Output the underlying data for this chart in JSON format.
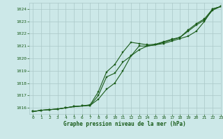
{
  "title": "Graphe pression niveau de la mer (hPa)",
  "bg_color": "#cce8e8",
  "grid_color": "#aac8c8",
  "line_color": "#1a5c1a",
  "xlim": [
    -0.5,
    23
  ],
  "ylim": [
    1015.5,
    1024.5
  ],
  "yticks": [
    1016,
    1017,
    1018,
    1019,
    1020,
    1021,
    1022,
    1023,
    1024
  ],
  "xticks": [
    0,
    1,
    2,
    3,
    4,
    5,
    6,
    7,
    8,
    9,
    10,
    11,
    12,
    13,
    14,
    15,
    16,
    17,
    18,
    19,
    20,
    21,
    22,
    23
  ],
  "series1": [
    1015.7,
    1015.8,
    1015.85,
    1015.9,
    1016.0,
    1016.1,
    1016.15,
    1016.2,
    1017.0,
    1018.5,
    1018.8,
    1019.7,
    1020.2,
    1020.7,
    1021.0,
    1021.1,
    1021.3,
    1021.5,
    1021.7,
    1022.2,
    1022.7,
    1023.1,
    1023.9,
    1024.2
  ],
  "series2": [
    1015.7,
    1015.8,
    1015.85,
    1015.9,
    1016.0,
    1016.1,
    1016.15,
    1016.2,
    1016.7,
    1017.5,
    1018.0,
    1019.0,
    1020.2,
    1021.0,
    1021.0,
    1021.1,
    1021.2,
    1021.4,
    1021.6,
    1021.8,
    1022.2,
    1023.0,
    1024.0,
    1024.2
  ],
  "series3": [
    1015.7,
    1015.8,
    1015.85,
    1015.9,
    1016.0,
    1016.1,
    1016.15,
    1016.25,
    1017.3,
    1018.9,
    1019.5,
    1020.5,
    1021.3,
    1021.2,
    1021.1,
    1021.15,
    1021.35,
    1021.55,
    1021.7,
    1022.3,
    1022.8,
    1023.2,
    1024.0,
    1024.2
  ]
}
